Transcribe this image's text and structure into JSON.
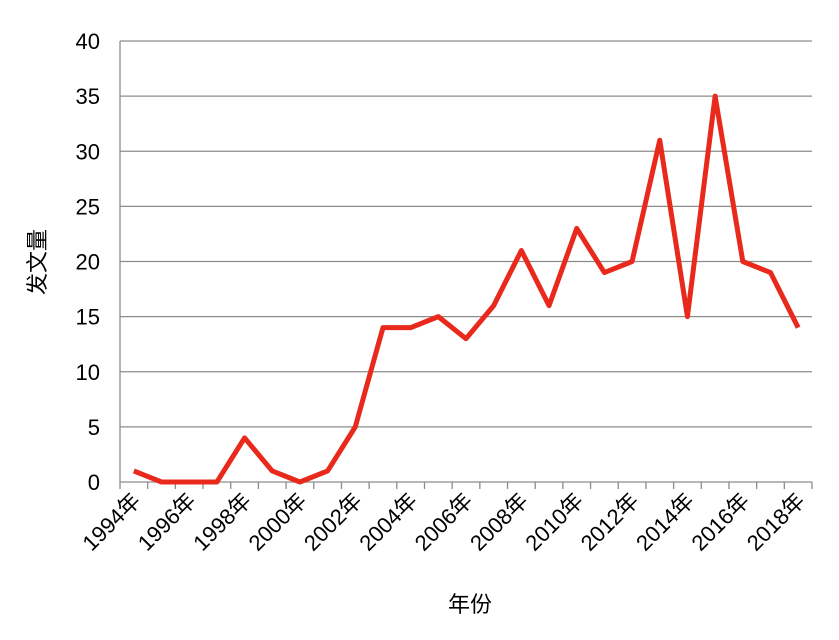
{
  "chart_data": {
    "type": "line",
    "categories": [
      "1994年",
      null,
      "1996年",
      null,
      "1998年",
      null,
      "2000年",
      null,
      "2002年",
      null,
      "2004年",
      null,
      "2006年",
      null,
      "2008年",
      null,
      "2010年",
      null,
      "2012年",
      null,
      "2014年",
      null,
      "2016年",
      null,
      "2018年"
    ],
    "series": [
      {
        "name": "发文量",
        "color": "#e8291c",
        "values": [
          1,
          0,
          0,
          0,
          4,
          1,
          0,
          1,
          5,
          14,
          14,
          15,
          13,
          16,
          21,
          16,
          23,
          19,
          20,
          31,
          15,
          35,
          20,
          19,
          14
        ]
      }
    ],
    "x_label": "年份",
    "y_label": "发文量",
    "ylim": [
      0,
      40
    ],
    "yticks": [
      0,
      5,
      10,
      15,
      20,
      25,
      30,
      35,
      40
    ],
    "grid": true
  }
}
